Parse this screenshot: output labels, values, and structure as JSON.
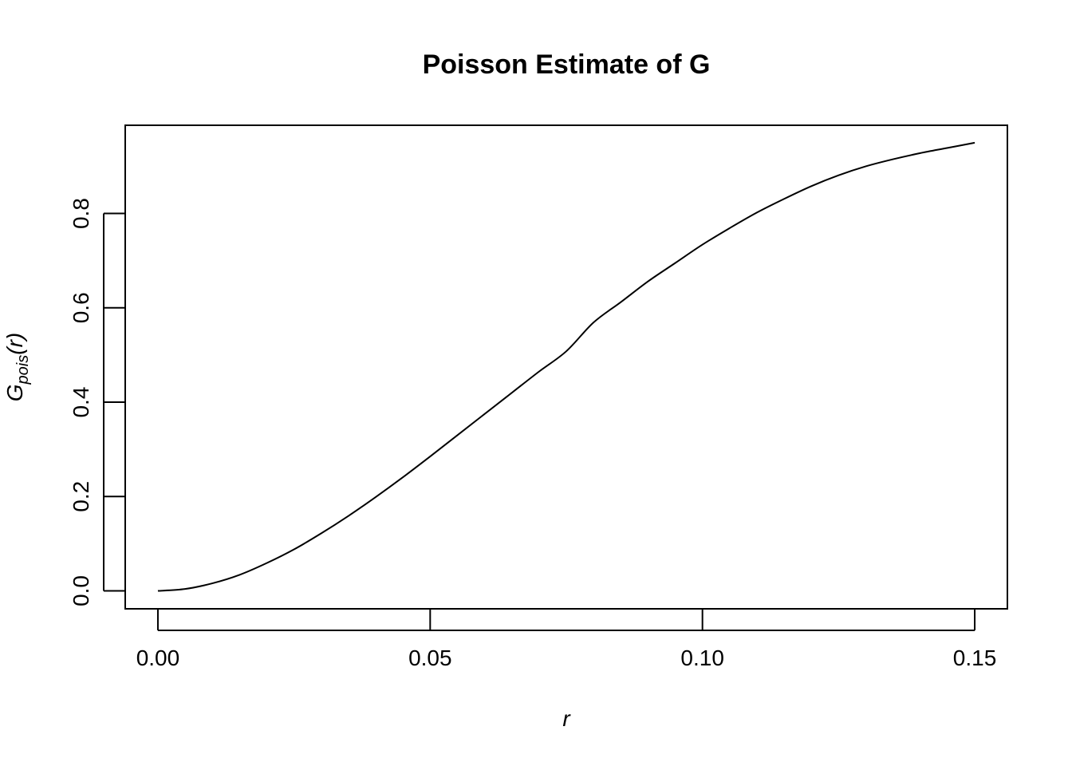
{
  "chart_data": {
    "type": "line",
    "title": "Poisson Estimate of G",
    "xlabel": "r",
    "ylabel": {
      "base": "G",
      "subscript": "pois",
      "suffix": "(r)"
    },
    "xlim": [
      -0.006,
      0.156
    ],
    "ylim": [
      -0.038,
      0.987
    ],
    "xticks": [
      0.0,
      0.05,
      0.1,
      0.15
    ],
    "xtick_labels": [
      "0.00",
      "0.05",
      "0.10",
      "0.15"
    ],
    "yticks": [
      0.0,
      0.2,
      0.4,
      0.6,
      0.8
    ],
    "ytick_labels": [
      "0.0",
      "0.2",
      "0.4",
      "0.6",
      "0.8"
    ],
    "grid": false,
    "series": [
      {
        "x": [
          0.0,
          0.005,
          0.01,
          0.015,
          0.02,
          0.025,
          0.03,
          0.035,
          0.04,
          0.045,
          0.05,
          0.055,
          0.06,
          0.065,
          0.07,
          0.075,
          0.08,
          0.085,
          0.09,
          0.095,
          0.1,
          0.105,
          0.11,
          0.115,
          0.12,
          0.125,
          0.13,
          0.135,
          0.14,
          0.145,
          0.15
        ],
        "y": [
          0.0,
          0.004,
          0.016,
          0.034,
          0.059,
          0.088,
          0.122,
          0.159,
          0.199,
          0.241,
          0.285,
          0.33,
          0.375,
          0.42,
          0.465,
          0.508,
          0.569,
          0.612,
          0.656,
          0.695,
          0.734,
          0.769,
          0.802,
          0.831,
          0.858,
          0.881,
          0.9,
          0.915,
          0.928,
          0.939,
          0.95
        ]
      }
    ]
  }
}
